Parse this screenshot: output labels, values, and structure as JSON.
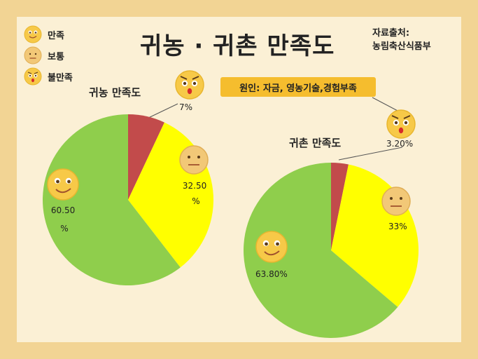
{
  "title": "귀농 · 귀촌 만족도",
  "source": {
    "line1": "자료출처:",
    "line2": "농림축산식품부"
  },
  "legend": [
    {
      "label": "만족",
      "icon": "smile-face-icon"
    },
    {
      "label": "보통",
      "icon": "neutral-face-icon"
    },
    {
      "label": "불만족",
      "icon": "shocked-face-icon"
    }
  ],
  "cause_note": "원인: 자금, 영농기술,경험부족",
  "colors": {
    "satisfied": "#8fce4c",
    "neutral": "#ffff00",
    "dissatisfied": "#c24b4b",
    "face": "#f7c948"
  },
  "chart_data": [
    {
      "type": "pie",
      "title": "귀농 만족도",
      "slices": [
        {
          "category": "불만족",
          "value": 7,
          "label": "7%"
        },
        {
          "category": "보통",
          "value": 32.5,
          "label": "32.50 %"
        },
        {
          "category": "만족",
          "value": 60.5,
          "label": "60.50 %"
        }
      ]
    },
    {
      "type": "pie",
      "title": "귀촌 만족도",
      "slices": [
        {
          "category": "불만족",
          "value": 3.2,
          "label": "3.20%"
        },
        {
          "category": "보통",
          "value": 33,
          "label": "33%"
        },
        {
          "category": "만족",
          "value": 63.8,
          "label": "63.80%"
        }
      ]
    }
  ]
}
